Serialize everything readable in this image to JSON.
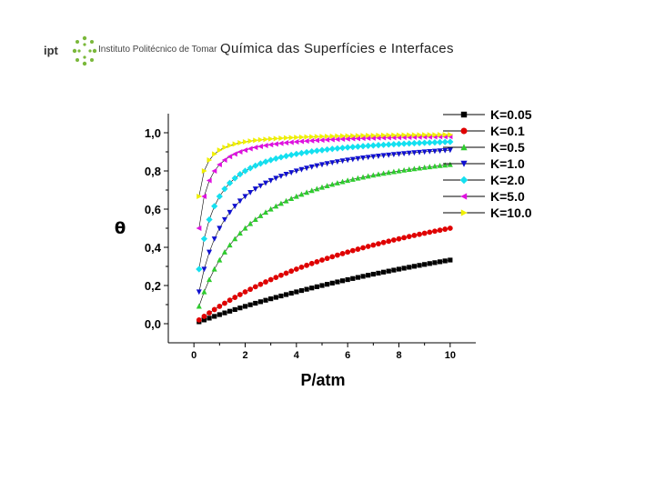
{
  "header": {
    "logo_abbr": "ipt",
    "logo_name": "Instituto Politécnico de Tomar",
    "title": "Química das Superfícies e Interfaces"
  },
  "chart_data": {
    "type": "scatter",
    "title": "",
    "xlabel": "P/atm",
    "ylabel": "θ",
    "xlim": [
      -1,
      11
    ],
    "ylim": [
      -0.1,
      1.1
    ],
    "x_ticks": [
      "0",
      "2",
      "4",
      "6",
      "8",
      "10"
    ],
    "y_ticks": [
      "0,0",
      "0,2",
      "0,4",
      "0,6",
      "0,8",
      "1,0"
    ],
    "grid": false,
    "legend_position": "top-right",
    "x": [
      0.2,
      0.4,
      0.6,
      0.8,
      1.0,
      1.2,
      1.4,
      1.6,
      1.8,
      2.0,
      2.2,
      2.4,
      2.6,
      2.8,
      3.0,
      3.2,
      3.4,
      3.6,
      3.8,
      4.0,
      4.2,
      4.4,
      4.6,
      4.8,
      5.0,
      5.2,
      5.4,
      5.6,
      5.8,
      6.0,
      6.2,
      6.4,
      6.6,
      6.8,
      7.0,
      7.2,
      7.4,
      7.6,
      7.8,
      8.0,
      8.2,
      8.4,
      8.6,
      8.8,
      9.0,
      9.2,
      9.4,
      9.6,
      9.8,
      10.0
    ],
    "series": [
      {
        "name": "K=0.05",
        "color": "#000000",
        "marker": "square",
        "values": [
          0.0099,
          0.0196,
          0.0291,
          0.0385,
          0.0476,
          0.0566,
          0.0654,
          0.0741,
          0.0826,
          0.0909,
          0.0991,
          0.1071,
          0.115,
          0.1228,
          0.1304,
          0.1379,
          0.1453,
          0.1525,
          0.1597,
          0.1667,
          0.1736,
          0.1803,
          0.187,
          0.1935,
          0.2,
          0.2063,
          0.2126,
          0.2188,
          0.2248,
          0.2308,
          0.2366,
          0.2424,
          0.2481,
          0.2537,
          0.2593,
          0.2647,
          0.2701,
          0.2754,
          0.2806,
          0.2857,
          0.2907,
          0.2957,
          0.3007,
          0.3056,
          0.3103,
          0.3151,
          0.3197,
          0.3243,
          0.3289,
          0.3333
        ]
      },
      {
        "name": "K=0.1",
        "color": "#e00000",
        "marker": "circle",
        "values": [
          0.0196,
          0.0385,
          0.0566,
          0.0741,
          0.0909,
          0.1071,
          0.1228,
          0.1379,
          0.1525,
          0.1667,
          0.1803,
          0.1935,
          0.2063,
          0.2188,
          0.2308,
          0.2424,
          0.2537,
          0.2647,
          0.2754,
          0.2857,
          0.2958,
          0.3056,
          0.3151,
          0.3243,
          0.3333,
          0.3421,
          0.3506,
          0.359,
          0.3671,
          0.375,
          0.3827,
          0.3902,
          0.3976,
          0.4048,
          0.4118,
          0.4186,
          0.4253,
          0.4318,
          0.4382,
          0.4444,
          0.4505,
          0.4565,
          0.4624,
          0.4681,
          0.4737,
          0.4792,
          0.4845,
          0.4898,
          0.4949,
          0.5
        ]
      },
      {
        "name": "K=0.5",
        "color": "#2ecc2e",
        "marker": "triangle-up",
        "values": [
          0.0909,
          0.1667,
          0.2308,
          0.2857,
          0.3333,
          0.375,
          0.4118,
          0.4444,
          0.4737,
          0.5,
          0.5238,
          0.5455,
          0.5652,
          0.5833,
          0.6,
          0.6154,
          0.6296,
          0.6429,
          0.6552,
          0.6667,
          0.6774,
          0.6875,
          0.697,
          0.7059,
          0.7143,
          0.7222,
          0.7297,
          0.7368,
          0.7436,
          0.75,
          0.7561,
          0.7619,
          0.7674,
          0.7727,
          0.7778,
          0.7826,
          0.7872,
          0.7917,
          0.7959,
          0.8,
          0.8039,
          0.8077,
          0.8113,
          0.8148,
          0.8182,
          0.8214,
          0.8246,
          0.8276,
          0.8305,
          0.8333
        ]
      },
      {
        "name": "K=1.0",
        "color": "#1010d0",
        "marker": "triangle-down",
        "values": [
          0.1667,
          0.2857,
          0.375,
          0.4444,
          0.5,
          0.5455,
          0.5833,
          0.6154,
          0.6429,
          0.6667,
          0.6875,
          0.7059,
          0.7222,
          0.7368,
          0.75,
          0.7619,
          0.7727,
          0.7826,
          0.7917,
          0.8,
          0.8077,
          0.8148,
          0.8214,
          0.8276,
          0.8333,
          0.8387,
          0.8438,
          0.8485,
          0.8529,
          0.8571,
          0.8611,
          0.8649,
          0.8684,
          0.8718,
          0.875,
          0.878,
          0.881,
          0.8837,
          0.8864,
          0.8889,
          0.8913,
          0.8936,
          0.8958,
          0.898,
          0.9,
          0.902,
          0.9038,
          0.9057,
          0.9074,
          0.9091
        ]
      },
      {
        "name": "K=2.0",
        "color": "#14e0f0",
        "marker": "diamond",
        "values": [
          0.2857,
          0.4444,
          0.5455,
          0.6154,
          0.6667,
          0.7059,
          0.7368,
          0.7619,
          0.7826,
          0.8,
          0.8148,
          0.8276,
          0.8387,
          0.8485,
          0.8571,
          0.8649,
          0.8718,
          0.878,
          0.8837,
          0.8889,
          0.8936,
          0.898,
          0.902,
          0.9057,
          0.9091,
          0.9123,
          0.9153,
          0.918,
          0.9206,
          0.9231,
          0.9254,
          0.9275,
          0.9296,
          0.9315,
          0.9333,
          0.9351,
          0.9367,
          0.9383,
          0.9398,
          0.9412,
          0.9425,
          0.9438,
          0.9451,
          0.9462,
          0.9474,
          0.9485,
          0.9495,
          0.9505,
          0.9515,
          0.9524
        ]
      },
      {
        "name": "K=5.0",
        "color": "#e010e0",
        "marker": "triangle-left",
        "values": [
          0.5,
          0.6667,
          0.75,
          0.8,
          0.8333,
          0.8571,
          0.875,
          0.8889,
          0.9,
          0.9091,
          0.9167,
          0.9231,
          0.9286,
          0.9333,
          0.9375,
          0.9412,
          0.9444,
          0.9474,
          0.95,
          0.9524,
          0.9545,
          0.9565,
          0.9583,
          0.96,
          0.9615,
          0.963,
          0.9643,
          0.9655,
          0.9667,
          0.9677,
          0.9688,
          0.9697,
          0.9706,
          0.9714,
          0.9722,
          0.973,
          0.9737,
          0.9744,
          0.975,
          0.9756,
          0.9762,
          0.9767,
          0.9773,
          0.9778,
          0.9783,
          0.9787,
          0.9792,
          0.9796,
          0.98,
          0.9804
        ]
      },
      {
        "name": "K=10.0",
        "color": "#f0f000",
        "marker": "triangle-right",
        "values": [
          0.6667,
          0.8,
          0.8571,
          0.8889,
          0.9091,
          0.9231,
          0.9333,
          0.9412,
          0.9474,
          0.9524,
          0.9565,
          0.96,
          0.963,
          0.9655,
          0.9677,
          0.9697,
          0.9714,
          0.973,
          0.9744,
          0.9756,
          0.9767,
          0.9778,
          0.9787,
          0.9796,
          0.9804,
          0.9811,
          0.9818,
          0.9825,
          0.9831,
          0.9836,
          0.9841,
          0.9846,
          0.9851,
          0.9855,
          0.9859,
          0.9863,
          0.9867,
          0.987,
          0.9873,
          0.9877,
          0.988,
          0.9882,
          0.9885,
          0.9888,
          0.989,
          0.9892,
          0.9895,
          0.9897,
          0.9899,
          0.9901
        ]
      }
    ]
  }
}
